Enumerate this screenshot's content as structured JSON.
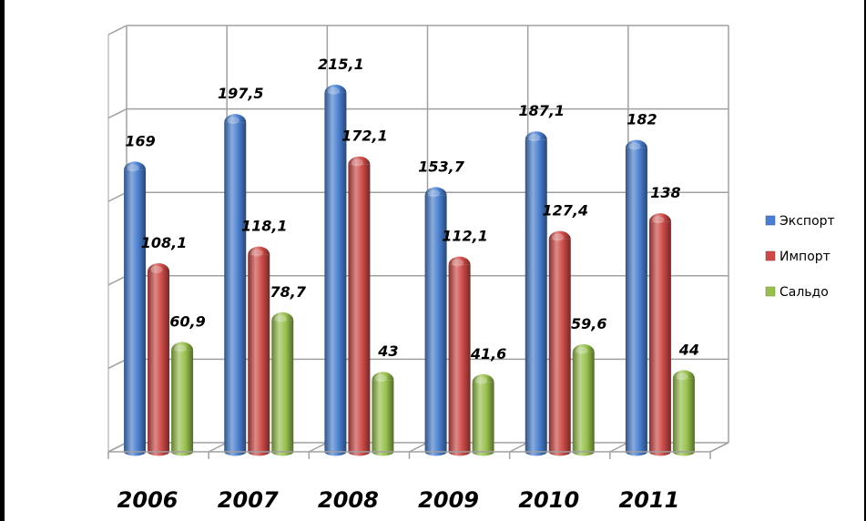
{
  "chart_data": {
    "type": "bar",
    "title": "",
    "xlabel": "",
    "ylabel": "",
    "categories": [
      "2006",
      "2007",
      "2008",
      "2009",
      "2010",
      "2011"
    ],
    "series": [
      {
        "name": "Экспорт",
        "values": [
          169,
          197.5,
          215.1,
          153.7,
          187.1,
          182
        ],
        "labels": [
          "169",
          "197,5",
          "215,1",
          "153,7",
          "187,1",
          "182"
        ],
        "color": "#4a7fd0"
      },
      {
        "name": "Импорт",
        "values": [
          108.1,
          118.1,
          172.1,
          112.1,
          127.4,
          138
        ],
        "labels": [
          "108,1",
          "118,1",
          "172,1",
          "112,1",
          "127,4",
          "138"
        ],
        "color": "#cc4a47"
      },
      {
        "name": "Сальдо",
        "values": [
          60.9,
          78.7,
          43,
          41.6,
          59.6,
          44
        ],
        "labels": [
          "60,9",
          "78,7",
          "43",
          "41,6",
          "59,6",
          "44"
        ],
        "color": "#98c04e"
      }
    ],
    "ylim": [
      0,
      250
    ],
    "grid": true,
    "legend_position": "right",
    "style": "3d-cylinder"
  }
}
